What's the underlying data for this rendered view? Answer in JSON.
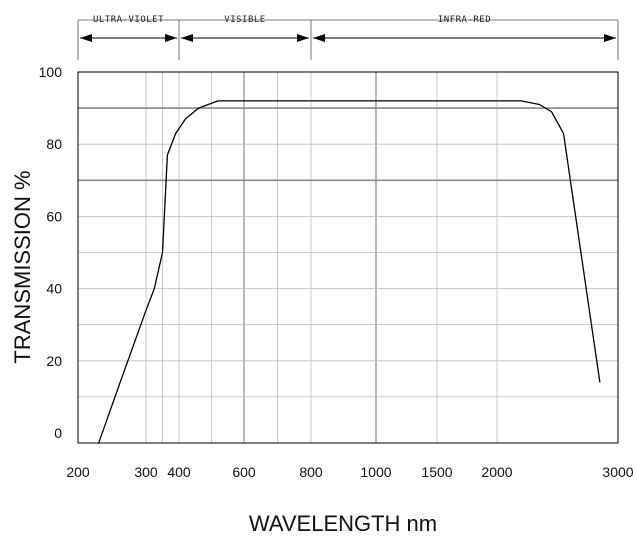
{
  "chart_data": {
    "type": "line",
    "title": "",
    "xlabel": "WAVELENGTH nm",
    "ylabel": "TRANSMISSION %",
    "xticks": [
      {
        "value": 200,
        "label": "200"
      },
      {
        "value": 300,
        "label": "300"
      },
      {
        "value": 400,
        "label": "400"
      },
      {
        "value": 600,
        "label": "600"
      },
      {
        "value": 800,
        "label": "800"
      },
      {
        "value": 1000,
        "label": "1000"
      },
      {
        "value": 1500,
        "label": "1500"
      },
      {
        "value": 2000,
        "label": "2000"
      },
      {
        "value": 3000,
        "label": "3000"
      }
    ],
    "yticks": [
      0,
      20,
      40,
      60,
      80,
      100
    ],
    "ylim": [
      -3,
      100
    ],
    "bands": [
      {
        "name": "ULTRA-VIOLET",
        "from": 200,
        "to": 400
      },
      {
        "name": "VISIBLE",
        "from": 400,
        "to": 800
      },
      {
        "name": "INFRA-RED",
        "from": 800,
        "to": 3000
      }
    ],
    "grid": true,
    "legend": "none",
    "series": [
      {
        "x": [
          230,
          260,
          300,
          325,
          350,
          365,
          390,
          420,
          460,
          520,
          600,
          800,
          1000,
          1500,
          2000,
          2200,
          2350,
          2450,
          2550,
          2850
        ],
        "y": [
          -3,
          13,
          34,
          40,
          50,
          77,
          83,
          87,
          90,
          92,
          92,
          92,
          92,
          92,
          92,
          92,
          91,
          89,
          83,
          14
        ]
      }
    ],
    "colors": {
      "line": "#000000",
      "grid": "#bdbdbd",
      "grid_heavy": "#8a8a8a",
      "frame": "#000000"
    }
  }
}
